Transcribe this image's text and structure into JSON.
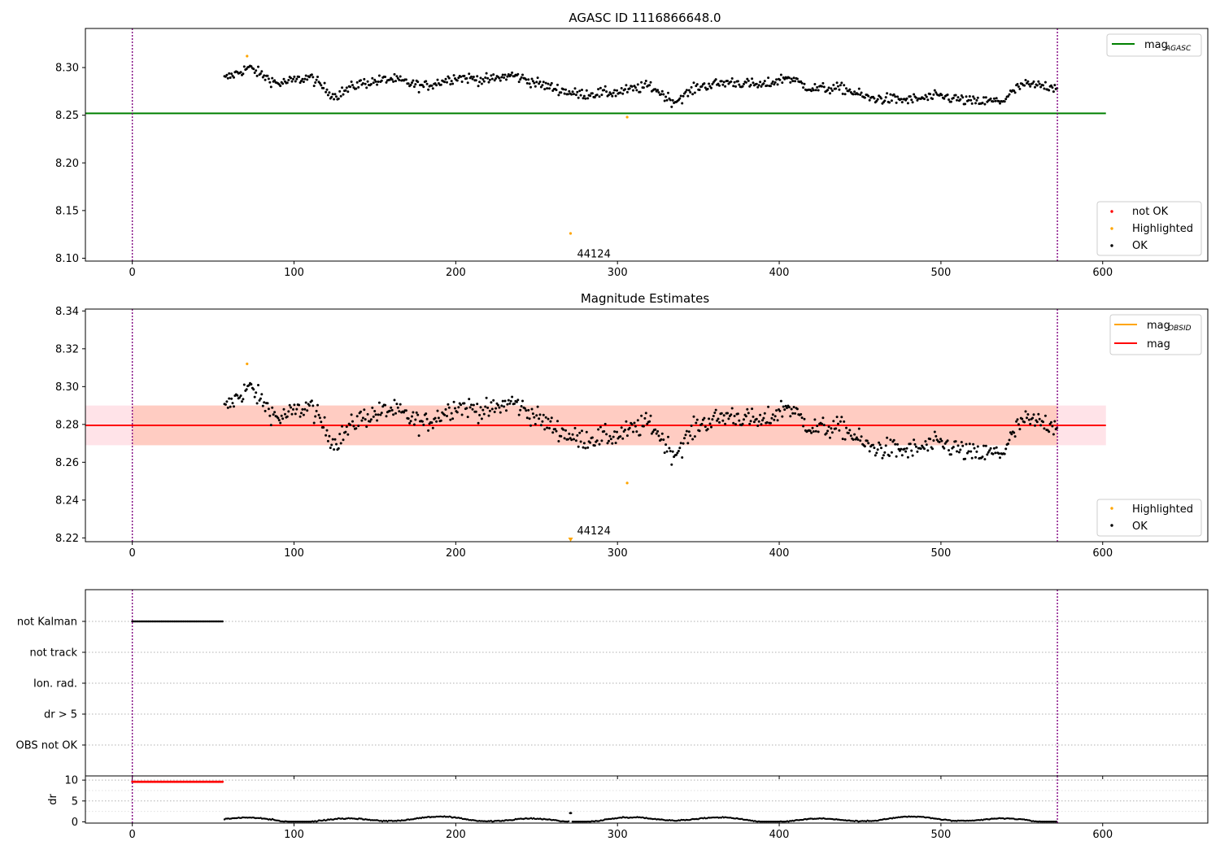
{
  "colors": {
    "ok": "#000000",
    "not_ok": "#ff0000",
    "highlighted": "#ffa500",
    "mag_agasc_line": "#008000",
    "mag_line": "#ff0000",
    "mag_obsid_line": "#ffa500",
    "band_fill": "#ffc0cb",
    "band_overlay": "#ffa07a",
    "obs_boundary": "#800080",
    "grid": "#b0b0b0"
  },
  "chart_data": [
    {
      "type": "scatter",
      "title": "AGASC ID 1116866648.0",
      "xlim": [
        -29,
        665
      ],
      "ylim": [
        8.097,
        8.341
      ],
      "xticks": [
        "0",
        "100",
        "200",
        "300",
        "400",
        "500",
        "600"
      ],
      "yticks": [
        "8.10",
        "8.15",
        "8.20",
        "8.25",
        "8.30"
      ],
      "legend_lines": {
        "position": "upper right",
        "entries": [
          {
            "label": "mag",
            "sub": "AGASC"
          }
        ]
      },
      "legend_markers": {
        "position": "lower right",
        "entries": [
          "not OK",
          "Highlighted",
          "OK"
        ]
      },
      "mag_agasc": 8.252,
      "obs_boundaries": [
        0,
        572
      ],
      "annotation": {
        "text": "44124",
        "x": 275,
        "y": 8.105
      },
      "highlighted_points": [
        [
          71,
          8.312
        ],
        [
          306,
          8.248
        ],
        [
          271,
          8.126
        ]
      ]
    },
    {
      "type": "scatter",
      "title": "Magnitude Estimates",
      "xlim": [
        -29,
        665
      ],
      "ylim": [
        8.218,
        8.341
      ],
      "xticks": [
        "0",
        "100",
        "200",
        "300",
        "400",
        "500",
        "600"
      ],
      "yticks": [
        "8.22",
        "8.24",
        "8.26",
        "8.28",
        "8.30",
        "8.32",
        "8.34"
      ],
      "legend_lines": {
        "position": "upper right",
        "entries": [
          {
            "label": "mag",
            "sub": "OBSID"
          },
          {
            "label": "mag",
            "sub": ""
          }
        ]
      },
      "legend_markers": {
        "position": "lower right",
        "entries": [
          "Highlighted",
          "OK"
        ]
      },
      "mag": 8.2795,
      "band": [
        8.269,
        8.29
      ],
      "obs_boundaries": [
        0,
        572
      ],
      "annotation": {
        "text": "44124",
        "x": 275,
        "y": 8.2235
      },
      "highlighted_points": [
        [
          71,
          8.312
        ],
        [
          306,
          8.249
        ]
      ],
      "clipped_marker": {
        "x": 271,
        "y": 8.2195
      }
    },
    {
      "type": "scatter",
      "title": "",
      "xlim": [
        -29,
        665
      ],
      "categories": [
        "not Kalman",
        "not track",
        "Ion. rad.",
        "dr > 5",
        "OBS not OK"
      ],
      "not_kalman_range": [
        0,
        56
      ],
      "obs_boundaries": [
        0,
        572
      ]
    },
    {
      "type": "scatter",
      "title": "",
      "xlim": [
        -29,
        665
      ],
      "ylim": [
        -0.3,
        11
      ],
      "ylabel": "dr",
      "xticks": [
        "0",
        "100",
        "200",
        "300",
        "400",
        "500",
        "600"
      ],
      "yticks": [
        "0",
        "5",
        "10"
      ],
      "capped_value": 9.6,
      "capped_range": [
        0,
        56
      ],
      "obs_boundaries": [
        0,
        572
      ]
    }
  ]
}
